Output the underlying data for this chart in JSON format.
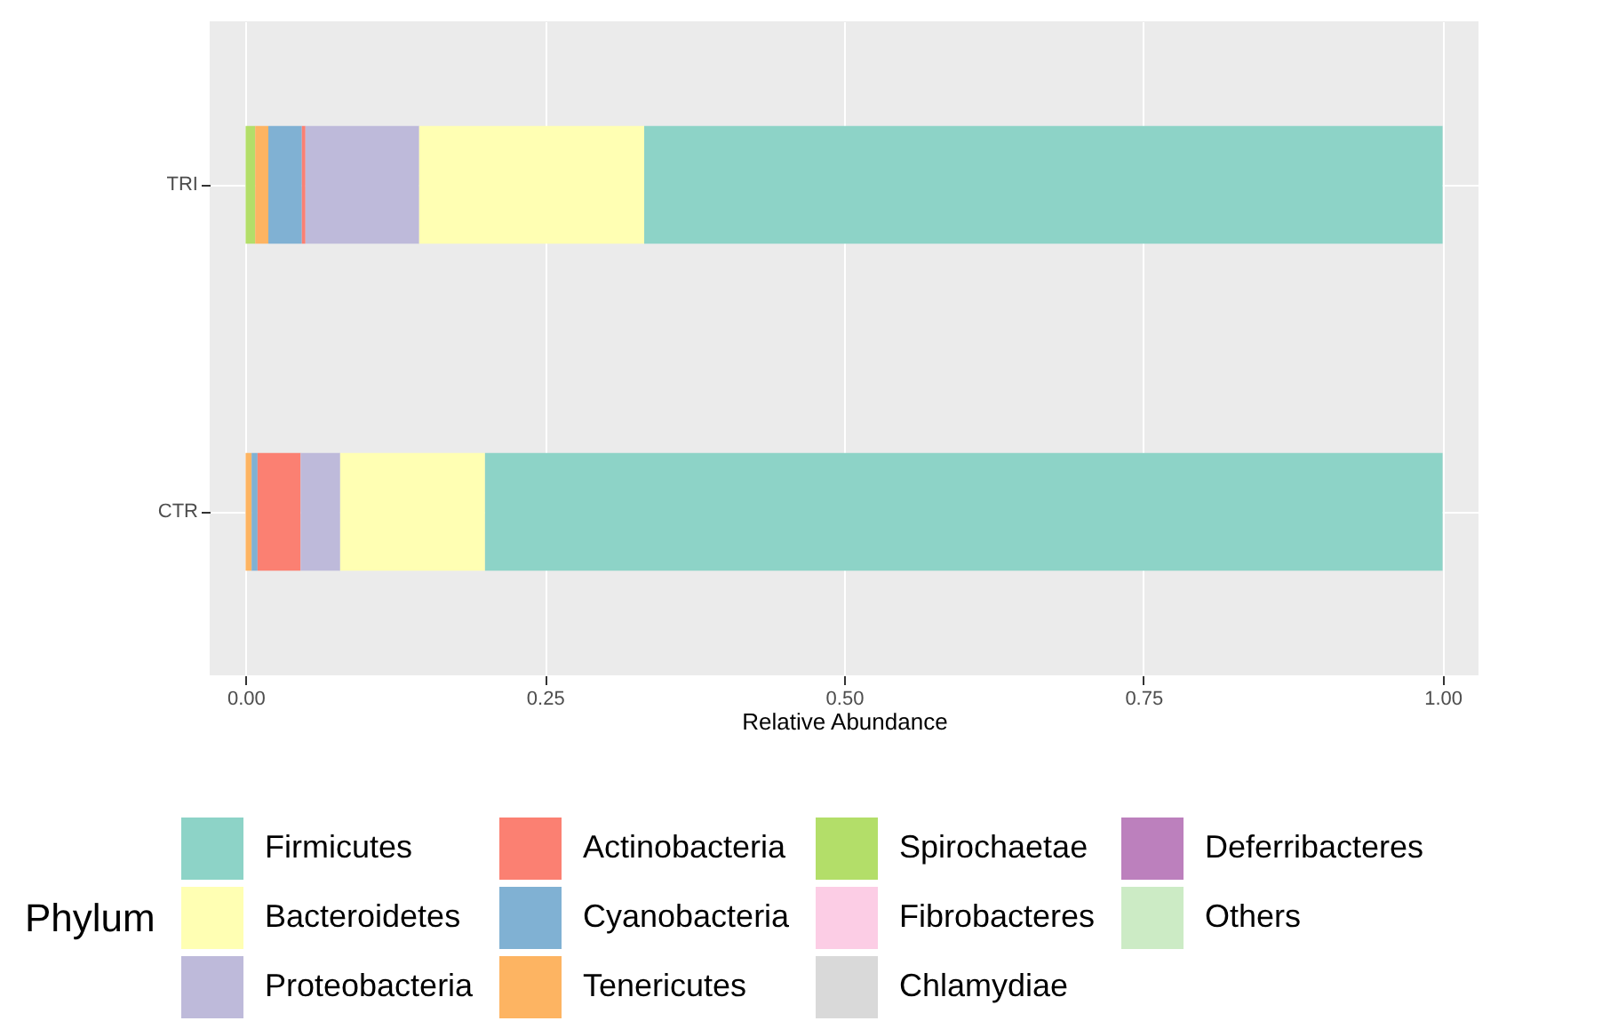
{
  "chart_data": {
    "type": "bar",
    "orientation": "horizontal",
    "stacked": true,
    "xlabel": "Relative Abundance",
    "legend_title": "Phylum",
    "legend": "bottom",
    "grid": true,
    "categories": [
      "TRI",
      "CTR"
    ],
    "xlim": [
      -0.03,
      1.03
    ],
    "xticks": [
      {
        "value": 0,
        "label": "0.00"
      },
      {
        "value": 0.25,
        "label": "0.25"
      },
      {
        "value": 0.5,
        "label": "0.50"
      },
      {
        "value": 0.75,
        "label": "0.75"
      },
      {
        "value": 1,
        "label": "1.00"
      }
    ],
    "series": [
      {
        "name": "Others",
        "color": "#ccebc5",
        "values": [
          0,
          0
        ]
      },
      {
        "name": "Deferribacteres",
        "color": "#bc80bd",
        "values": [
          0,
          0
        ]
      },
      {
        "name": "Chlamydiae",
        "color": "#d9d9d9",
        "values": [
          0,
          0
        ]
      },
      {
        "name": "Fibrobacteres",
        "color": "#fccde5",
        "values": [
          0,
          0
        ]
      },
      {
        "name": "Spirochaetae",
        "color": "#b3de69",
        "values": [
          0.008,
          0
        ]
      },
      {
        "name": "Tenericutes",
        "color": "#fdb462",
        "values": [
          0.011,
          0.005
        ]
      },
      {
        "name": "Cyanobacteria",
        "color": "#80b1d3",
        "values": [
          0.028,
          0.005
        ]
      },
      {
        "name": "Actinobacteria",
        "color": "#fb8072",
        "values": [
          0.003,
          0.036
        ]
      },
      {
        "name": "Proteobacteria",
        "color": "#bebada",
        "values": [
          0.095,
          0.033
        ]
      },
      {
        "name": "Bacteroidetes",
        "color": "#ffffb3",
        "values": [
          0.188,
          0.121
        ]
      },
      {
        "name": "Firmicutes",
        "color": "#8dd3c7",
        "values": [
          0.667,
          0.8
        ]
      }
    ]
  }
}
